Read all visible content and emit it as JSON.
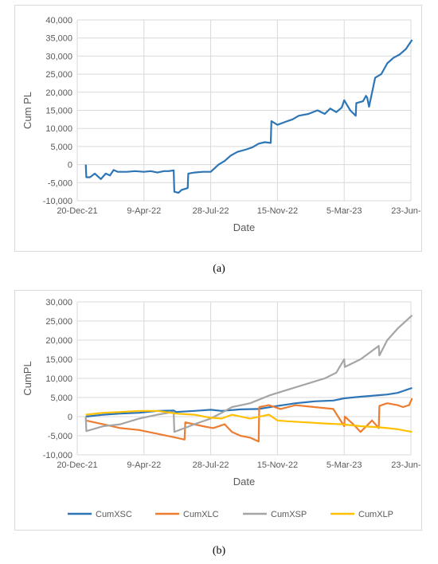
{
  "captions": {
    "a": "(a)",
    "b": "(b)"
  },
  "chart_data": [
    {
      "type": "line",
      "title": "",
      "xlabel": "Date",
      "ylabel": "Cum PL",
      "ylim": [
        -10000,
        40000
      ],
      "yticks": [
        -10000,
        -5000,
        0,
        5000,
        10000,
        15000,
        20000,
        25000,
        30000,
        35000,
        40000
      ],
      "yticklabels": [
        "-10,000",
        "-5,000",
        "0",
        "5,000",
        "10,000",
        "15,000",
        "20,000",
        "25,000",
        "30,000",
        "35,000",
        "40,000"
      ],
      "xlim": [
        "2021-12-20",
        "2023-06-23"
      ],
      "xticks": [
        "2021-12-20",
        "2022-04-09",
        "2022-07-28",
        "2022-11-15",
        "2023-03-05",
        "2023-06-23"
      ],
      "xticklabels": [
        "20-Dec-21",
        "9-Apr-22",
        "28-Jul-22",
        "15-Nov-22",
        "5-Mar-23",
        "23-Jun-23"
      ],
      "grid": true,
      "legend": "none",
      "series": [
        {
          "name": "",
          "color": "#2e75b6",
          "x": [
            "2022-01-03",
            "2022-01-04",
            "2022-01-10",
            "2022-01-18",
            "2022-01-28",
            "2022-02-05",
            "2022-02-12",
            "2022-02-18",
            "2022-02-25",
            "2022-03-05",
            "2022-03-12",
            "2022-03-25",
            "2022-04-09",
            "2022-04-20",
            "2022-05-01",
            "2022-05-12",
            "2022-05-20",
            "2022-05-28",
            "2022-05-29",
            "2022-06-05",
            "2022-06-10",
            "2022-06-20",
            "2022-06-21",
            "2022-07-01",
            "2022-07-15",
            "2022-07-28",
            "2022-08-10",
            "2022-08-20",
            "2022-08-30",
            "2022-09-10",
            "2022-09-25",
            "2022-10-05",
            "2022-10-15",
            "2022-10-25",
            "2022-11-04",
            "2022-11-05",
            "2022-11-15",
            "2022-11-28",
            "2022-12-10",
            "2022-12-20",
            "2023-01-05",
            "2023-01-20",
            "2023-02-01",
            "2023-02-10",
            "2023-02-20",
            "2023-03-01",
            "2023-03-05",
            "2023-03-15",
            "2023-03-24",
            "2023-03-25",
            "2023-04-05",
            "2023-04-10",
            "2023-04-12",
            "2023-04-15",
            "2023-04-25",
            "2023-05-05",
            "2023-05-15",
            "2023-05-25",
            "2023-06-05",
            "2023-06-15",
            "2023-06-25"
          ],
          "y": [
            0,
            -3500,
            -3500,
            -2500,
            -4000,
            -2500,
            -3000,
            -1500,
            -2000,
            -2000,
            -2000,
            -1800,
            -2000,
            -1800,
            -2200,
            -1800,
            -1800,
            -1600,
            -7500,
            -7800,
            -7000,
            -6500,
            -2500,
            -2200,
            -2000,
            -2000,
            0,
            1000,
            2500,
            3500,
            4200,
            4800,
            5800,
            6200,
            6000,
            12000,
            11000,
            11800,
            12500,
            13500,
            14000,
            15000,
            14000,
            15500,
            14500,
            15800,
            17800,
            15000,
            13500,
            17000,
            17500,
            19000,
            18500,
            16000,
            24000,
            25000,
            28000,
            29500,
            30500,
            32000,
            34500
          ]
        }
      ]
    },
    {
      "type": "line",
      "title": "",
      "xlabel": "Date",
      "ylabel": "CumPL",
      "ylim": [
        -10000,
        30000
      ],
      "yticks": [
        -10000,
        -5000,
        0,
        5000,
        10000,
        15000,
        20000,
        25000,
        30000
      ],
      "yticklabels": [
        "-10,000",
        "-5,000",
        "0",
        "5,000",
        "10,000",
        "15,000",
        "20,000",
        "25,000",
        "30,000"
      ],
      "xlim": [
        "2021-12-20",
        "2023-06-23"
      ],
      "xticks": [
        "2021-12-20",
        "2022-04-09",
        "2022-07-28",
        "2022-11-15",
        "2023-03-05",
        "2023-06-23"
      ],
      "xticklabels": [
        "20-Dec-21",
        "9-Apr-22",
        "28-Jul-22",
        "15-Nov-22",
        "5-Mar-23",
        "23-Jun-23"
      ],
      "grid": true,
      "legend": "bottom",
      "series": [
        {
          "name": "CumXSC",
          "color": "#2e75b6",
          "x": [
            "2022-01-03",
            "2022-02-01",
            "2022-03-01",
            "2022-04-01",
            "2022-05-01",
            "2022-05-28",
            "2022-06-01",
            "2022-07-01",
            "2022-07-28",
            "2022-08-15",
            "2022-09-15",
            "2022-10-15",
            "2022-11-15",
            "2022-12-15",
            "2023-01-15",
            "2023-02-15",
            "2023-03-05",
            "2023-04-01",
            "2023-05-01",
            "2023-05-15",
            "2023-06-01",
            "2023-06-25"
          ],
          "y": [
            0,
            500,
            800,
            1000,
            1500,
            1600,
            1200,
            1500,
            1800,
            1500,
            1900,
            2000,
            2800,
            3500,
            4000,
            4200,
            4800,
            5200,
            5600,
            5800,
            6200,
            7500
          ]
        },
        {
          "name": "CumXLC",
          "color": "#ed7d31",
          "x": [
            "2022-01-03",
            "2022-02-01",
            "2022-03-01",
            "2022-04-01",
            "2022-05-01",
            "2022-06-01",
            "2022-06-15",
            "2022-06-16",
            "2022-07-15",
            "2022-08-01",
            "2022-08-20",
            "2022-09-01",
            "2022-09-15",
            "2022-10-01",
            "2022-10-15",
            "2022-10-16",
            "2022-11-01",
            "2022-11-20",
            "2022-12-15",
            "2023-01-15",
            "2023-02-15",
            "2023-02-25",
            "2023-03-05",
            "2023-03-06",
            "2023-03-20",
            "2023-04-01",
            "2023-04-20",
            "2023-05-01",
            "2023-05-02",
            "2023-05-15",
            "2023-06-01",
            "2023-06-10",
            "2023-06-20",
            "2023-06-25"
          ],
          "y": [
            -1000,
            -2000,
            -3000,
            -3500,
            -4500,
            -5500,
            -6000,
            -1500,
            -2500,
            -3000,
            -2000,
            -4000,
            -5000,
            -5500,
            -6500,
            2500,
            3000,
            2000,
            3000,
            2500,
            2000,
            -500,
            -2500,
            0,
            -2000,
            -4000,
            -1000,
            -3000,
            2800,
            3500,
            3000,
            2500,
            3000,
            4800
          ]
        },
        {
          "name": "CumXSP",
          "color": "#a5a5a5",
          "x": [
            "2022-01-03",
            "2022-01-04",
            "2022-02-01",
            "2022-03-01",
            "2022-04-01",
            "2022-05-01",
            "2022-05-28",
            "2022-05-29",
            "2022-06-15",
            "2022-07-01",
            "2022-07-28",
            "2022-08-15",
            "2022-09-01",
            "2022-10-01",
            "2022-11-01",
            "2022-12-01",
            "2023-01-01",
            "2023-02-01",
            "2023-02-20",
            "2023-03-05",
            "2023-03-06",
            "2023-04-01",
            "2023-05-01",
            "2023-05-02",
            "2023-05-15",
            "2023-06-01",
            "2023-06-25"
          ],
          "y": [
            0,
            -3800,
            -2500,
            -2000,
            -500,
            500,
            1200,
            -4000,
            -3000,
            -2000,
            -500,
            1000,
            2500,
            3500,
            5500,
            7000,
            8500,
            10000,
            11500,
            15000,
            13000,
            15000,
            18500,
            16000,
            20000,
            23000,
            26500
          ]
        },
        {
          "name": "CumXLP",
          "color": "#ffc000",
          "x": [
            "2022-01-03",
            "2022-02-01",
            "2022-03-01",
            "2022-04-01",
            "2022-05-01",
            "2022-06-01",
            "2022-07-01",
            "2022-07-28",
            "2022-08-15",
            "2022-09-01",
            "2022-10-01",
            "2022-11-01",
            "2022-11-15",
            "2022-12-01",
            "2023-01-01",
            "2023-02-01",
            "2023-03-01",
            "2023-04-01",
            "2023-05-01",
            "2023-05-15",
            "2023-06-01",
            "2023-06-25"
          ],
          "y": [
            500,
            1000,
            1200,
            1500,
            1500,
            800,
            500,
            -300,
            -500,
            500,
            -500,
            500,
            -1000,
            -1200,
            -1500,
            -1800,
            -2000,
            -2500,
            -2800,
            -3000,
            -3300,
            -4000
          ]
        }
      ]
    }
  ]
}
